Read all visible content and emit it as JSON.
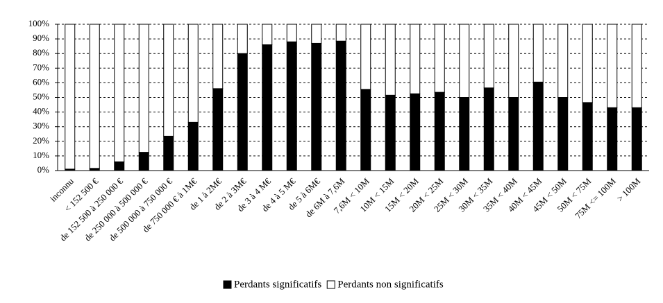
{
  "chart_data": {
    "type": "stacked_bar",
    "categories": [
      "inconnu",
      "< 152 500 €",
      "de 152 500 à 250 000 €",
      "de 250 000 à 500 000 €",
      "de 500 000 à 750 000 €",
      "de 750 000 € à 1M€",
      "de 1 à 2M€",
      "de 2 à 3M€",
      "de 3 à 4 M€",
      "de 4 à 5 M€",
      "de 5 à 6M€",
      "de 6M à 7,6M",
      "7,6M < 10M",
      "10M < 15M",
      "15M < 20M",
      "20M < 25M",
      "25M < 30M",
      "30M < 35M",
      "35M < 40M",
      "40M < 45M",
      "45M < 50M",
      "50M < 75M",
      "75M <= 100M",
      "> 100M"
    ],
    "series": [
      {
        "name": "Perdants significatifs",
        "color": "#000000",
        "values": [
          1,
          1.5,
          6,
          12.5,
          23.5,
          33,
          56,
          80,
          86,
          88,
          87,
          88.5,
          55.5,
          51.5,
          52.5,
          53.5,
          50,
          56.5,
          50,
          60.5,
          50,
          46.5,
          43,
          43
        ]
      },
      {
        "name": "Perdants non significatifs",
        "color": "#ffffff",
        "values": [
          99,
          98.5,
          94,
          87.5,
          76.5,
          67,
          44,
          20,
          14,
          12,
          13,
          11.5,
          44.5,
          48.5,
          47.5,
          46.5,
          50,
          43.5,
          50,
          39.5,
          50,
          53.5,
          57,
          57
        ]
      }
    ],
    "ylim": [
      0,
      100
    ],
    "yticks": [
      {
        "value": 0,
        "label": "0%"
      },
      {
        "value": 10,
        "label": "10%"
      },
      {
        "value": 20,
        "label": "20%"
      },
      {
        "value": 30,
        "label": "30%"
      },
      {
        "value": 40,
        "label": "40%"
      },
      {
        "value": 50,
        "label": "50%"
      },
      {
        "value": 60,
        "label": "60%"
      },
      {
        "value": 70,
        "label": "70%"
      },
      {
        "value": 80,
        "label": "80%"
      },
      {
        "value": 90,
        "label": "90%"
      },
      {
        "value": 100,
        "label": "100%"
      }
    ],
    "grid": true,
    "legend": "bottom"
  }
}
